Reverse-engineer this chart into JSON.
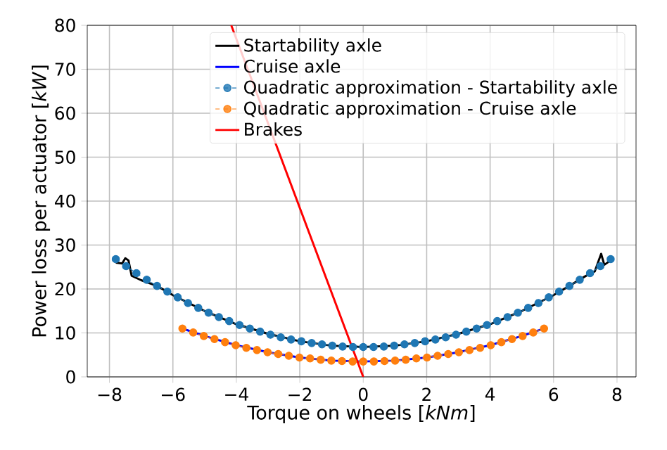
{
  "chart_data": {
    "type": "line",
    "xlabel": "Torque on wheels [*kNm*]",
    "ylabel": "Power loss per actuator [*kW*]",
    "xlim": [
      -8.7,
      8.6
    ],
    "ylim": [
      0,
      80
    ],
    "xticks": [
      {
        "value": -8,
        "label": "−8"
      },
      {
        "value": -6,
        "label": "−6"
      },
      {
        "value": -4,
        "label": "−4"
      },
      {
        "value": -2,
        "label": "−2"
      },
      0,
      2,
      4,
      6,
      8
    ],
    "yticks": [
      0,
      10,
      20,
      30,
      40,
      50,
      60,
      70,
      80
    ],
    "grid": true,
    "legend": "top right",
    "series": [
      {
        "name": "Startability axle",
        "color": "#000000",
        "line_style": "solid",
        "marker": "none",
        "x": [
          -7.8,
          -7.6,
          -7.5,
          -7.4,
          -7.3,
          -7.0,
          -6.5,
          -6,
          -5,
          -4,
          -3,
          -2,
          -1,
          0,
          1,
          2,
          3,
          4,
          5,
          6,
          6.5,
          7,
          7.3,
          7.4,
          7.5,
          7.6,
          7.8
        ],
        "values": [
          26,
          25.8,
          27,
          26.5,
          23,
          22,
          20.7,
          18.6,
          15,
          12,
          9.8,
          8.1,
          7.1,
          6.8,
          7.1,
          8.1,
          9.8,
          12,
          15,
          18.6,
          20.7,
          22.9,
          24,
          26,
          28,
          25.5,
          26.5
        ]
      },
      {
        "name": "Cruise axle",
        "color": "#0000ff",
        "line_style": "solid",
        "marker": "none",
        "x": [
          -5.7,
          -5,
          -4,
          -3,
          -2,
          -1,
          0,
          1,
          2,
          3,
          4,
          5,
          5.7
        ],
        "values": [
          11,
          9.3,
          7.2,
          5.6,
          4.4,
          3.7,
          3.5,
          3.7,
          4.4,
          5.6,
          7.2,
          9.3,
          11
        ]
      },
      {
        "name": "Quadratic approximation - Startability axle",
        "color": "#1f77b4",
        "line_style": "dashed",
        "marker": "circle",
        "x": [
          -7.8,
          -7.475,
          -7.15,
          -6.825,
          -6.5,
          -6.175,
          -5.85,
          -5.525,
          -5.2,
          -4.875,
          -4.55,
          -4.225,
          -3.9,
          -3.575,
          -3.25,
          -2.925,
          -2.6,
          -2.275,
          -1.95,
          -1.625,
          -1.3,
          -0.975,
          -0.65,
          -0.325,
          0,
          0.325,
          0.65,
          0.975,
          1.3,
          1.625,
          1.95,
          2.275,
          2.6,
          2.925,
          3.25,
          3.575,
          3.9,
          4.225,
          4.55,
          4.875,
          5.2,
          5.525,
          5.85,
          6.175,
          6.5,
          6.825,
          7.15,
          7.475,
          7.8
        ],
        "values": [
          26.8,
          25.2,
          23.6,
          22.1,
          20.7,
          19.4,
          18.1,
          16.8,
          15.7,
          14.6,
          13.6,
          12.7,
          11.8,
          11.0,
          10.3,
          9.6,
          9.0,
          8.5,
          8.1,
          7.7,
          7.4,
          7.1,
          6.9,
          6.8,
          6.8,
          6.8,
          6.9,
          7.1,
          7.4,
          7.7,
          8.1,
          8.5,
          9.0,
          9.6,
          10.3,
          11.0,
          11.8,
          12.7,
          13.6,
          14.6,
          15.7,
          16.8,
          18.1,
          19.4,
          20.7,
          22.1,
          23.6,
          25.2,
          26.8
        ]
      },
      {
        "name": "Quadratic approximation - Cruise axle",
        "color": "#ff7f0e",
        "line_style": "dashed",
        "marker": "circle",
        "x": [
          -5.7,
          -5.36,
          -5.025,
          -4.69,
          -4.355,
          -4.02,
          -3.685,
          -3.35,
          -3.015,
          -2.68,
          -2.345,
          -2.01,
          -1.675,
          -1.34,
          -1.005,
          -0.67,
          -0.335,
          0,
          0.335,
          0.67,
          1.005,
          1.34,
          1.675,
          2.01,
          2.345,
          2.68,
          3.015,
          3.35,
          3.685,
          4.02,
          4.355,
          4.69,
          5.025,
          5.36,
          5.7
        ],
        "values": [
          11.0,
          10.1,
          9.3,
          8.6,
          7.9,
          7.2,
          6.6,
          6.1,
          5.6,
          5.2,
          4.8,
          4.4,
          4.2,
          3.9,
          3.7,
          3.6,
          3.5,
          3.5,
          3.5,
          3.6,
          3.7,
          3.9,
          4.2,
          4.4,
          4.8,
          5.2,
          5.6,
          6.1,
          6.6,
          7.2,
          7.9,
          8.6,
          9.3,
          10.1,
          11.0
        ]
      },
      {
        "name": "Brakes",
        "color": "#ff0000",
        "line_style": "solid",
        "marker": "none",
        "x": [
          -4.16,
          0
        ],
        "values": [
          80,
          0
        ]
      }
    ]
  }
}
